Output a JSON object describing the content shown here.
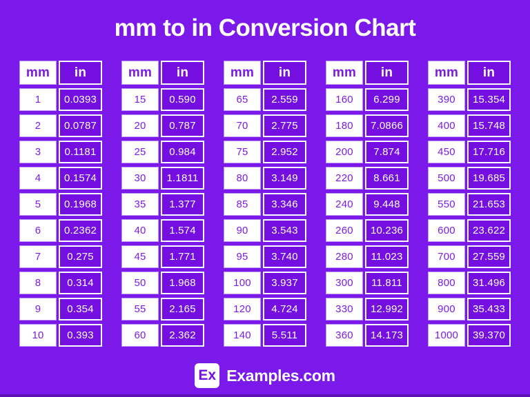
{
  "title": "mm to in Conversion Chart",
  "chart_data": {
    "type": "table",
    "title": "mm to in Conversion Chart",
    "columns": [
      "mm",
      "in"
    ],
    "tables": [
      {
        "rows": [
          [
            "1",
            "0.0393"
          ],
          [
            "2",
            "0.0787"
          ],
          [
            "3",
            "0.1181"
          ],
          [
            "4",
            "0.1574"
          ],
          [
            "5",
            "0.1968"
          ],
          [
            "6",
            "0.2362"
          ],
          [
            "7",
            "0.275"
          ],
          [
            "8",
            "0.314"
          ],
          [
            "9",
            "0.354"
          ],
          [
            "10",
            "0.393"
          ]
        ]
      },
      {
        "rows": [
          [
            "15",
            "0.590"
          ],
          [
            "20",
            "0.787"
          ],
          [
            "25",
            "0.984"
          ],
          [
            "30",
            "1.1811"
          ],
          [
            "35",
            "1.377"
          ],
          [
            "40",
            "1.574"
          ],
          [
            "45",
            "1.771"
          ],
          [
            "50",
            "1.968"
          ],
          [
            "55",
            "2.165"
          ],
          [
            "60",
            "2.362"
          ]
        ]
      },
      {
        "rows": [
          [
            "65",
            "2.559"
          ],
          [
            "70",
            "2.775"
          ],
          [
            "75",
            "2.952"
          ],
          [
            "80",
            "3.149"
          ],
          [
            "85",
            "3.346"
          ],
          [
            "90",
            "3.543"
          ],
          [
            "95",
            "3.740"
          ],
          [
            "100",
            "3.937"
          ],
          [
            "120",
            "4.724"
          ],
          [
            "140",
            "5.511"
          ]
        ]
      },
      {
        "rows": [
          [
            "160",
            "6.299"
          ],
          [
            "180",
            "7.0866"
          ],
          [
            "200",
            "7.874"
          ],
          [
            "220",
            "8.661"
          ],
          [
            "240",
            "9.448"
          ],
          [
            "260",
            "10.236"
          ],
          [
            "280",
            "11.023"
          ],
          [
            "300",
            "11.811"
          ],
          [
            "330",
            "12.992"
          ],
          [
            "360",
            "14.173"
          ]
        ]
      },
      {
        "rows": [
          [
            "390",
            "15.354"
          ],
          [
            "400",
            "15.748"
          ],
          [
            "450",
            "17.716"
          ],
          [
            "500",
            "19.685"
          ],
          [
            "550",
            "21.653"
          ],
          [
            "600",
            "23.622"
          ],
          [
            "700",
            "27.559"
          ],
          [
            "800",
            "31.496"
          ],
          [
            "900",
            "35.433"
          ],
          [
            "1000",
            "39.370"
          ]
        ]
      }
    ]
  },
  "footer": {
    "logo": "Ex",
    "site": "Examples.com"
  },
  "colors": {
    "background": "#7B19EA",
    "cell_purple": "#750EE0",
    "text_purple": "#7C1BE6",
    "white": "#FFFFFF"
  }
}
